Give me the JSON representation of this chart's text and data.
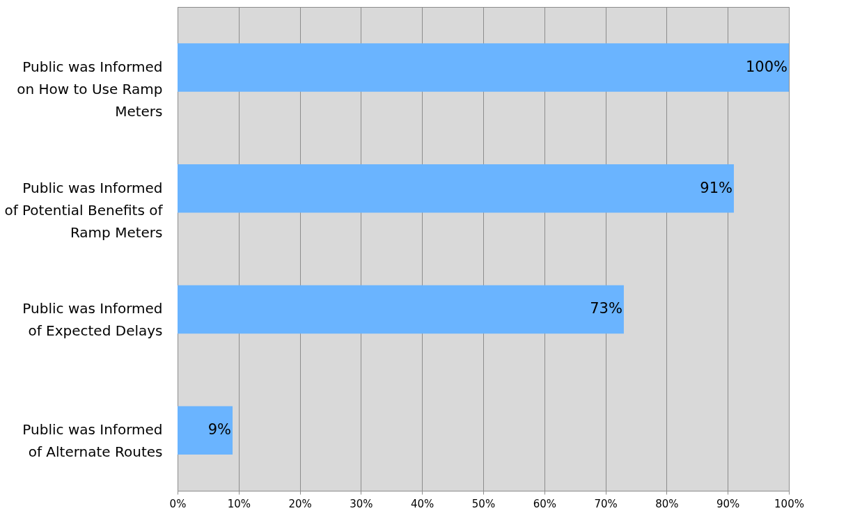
{
  "chart_data": {
    "type": "bar",
    "orientation": "horizontal",
    "categories": [
      "Public was Informed\non How to Use Ramp\nMeters",
      "Public was Informed\nof Potential Benefits of\nRamp Meters",
      "Public was Informed\nof Expected Delays",
      "Public was Informed\nof Alternate Routes"
    ],
    "values": [
      100,
      91,
      73,
      9
    ],
    "value_labels": [
      "100%",
      "91%",
      "73%",
      "9%"
    ],
    "color": "#6ab4ff",
    "xlim": [
      0,
      100
    ],
    "xticks": [
      {
        "value": 0,
        "label": "0%"
      },
      {
        "value": 10,
        "label": "10%"
      },
      {
        "value": 20,
        "label": "20%"
      },
      {
        "value": 30,
        "label": "30%"
      },
      {
        "value": 40,
        "label": "40%"
      },
      {
        "value": 50,
        "label": "50%"
      },
      {
        "value": 60,
        "label": "60%"
      },
      {
        "value": 70,
        "label": "70%"
      },
      {
        "value": 80,
        "label": "80%"
      },
      {
        "value": 90,
        "label": "90%"
      },
      {
        "value": 100,
        "label": "100%"
      }
    ],
    "grid": "x"
  }
}
